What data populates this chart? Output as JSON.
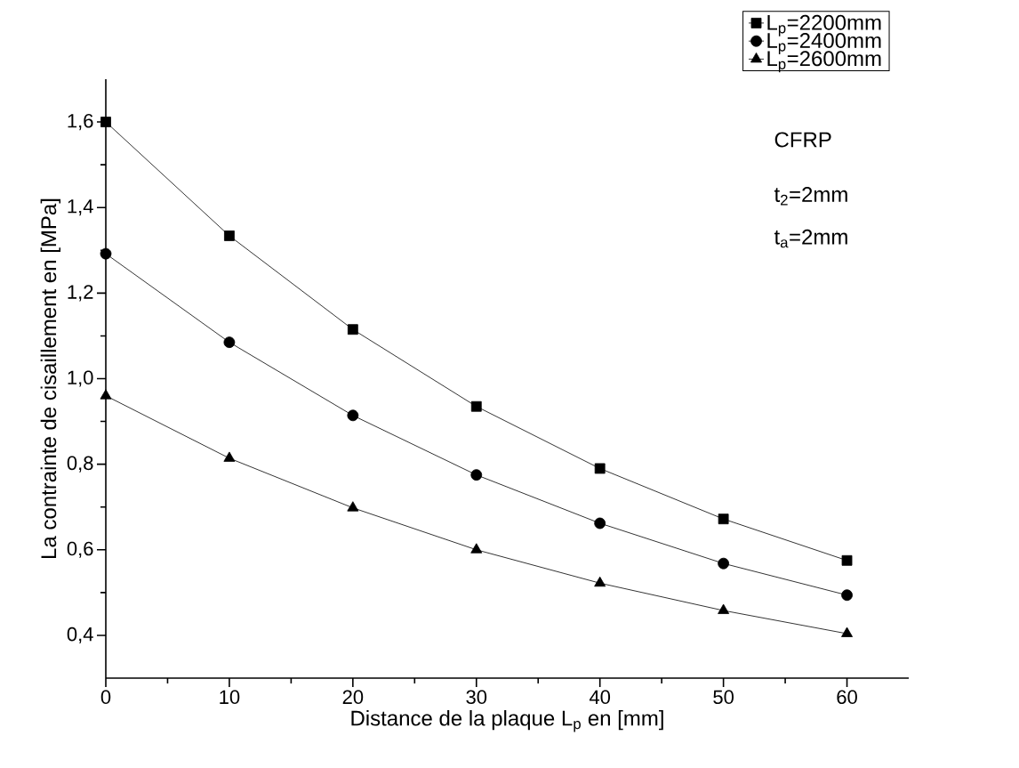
{
  "chart_data": {
    "type": "line",
    "xlabel": "Distance de la plaque L$_{p}$ en [mm]",
    "ylabel": "La contrainte de cisaillement en  [MPa]",
    "x": [
      0,
      10,
      20,
      30,
      40,
      50,
      60
    ],
    "series": [
      {
        "name": "L$_{p}$=2200mm",
        "color": "#000000",
        "marker": "square",
        "values": [
          1.6,
          1.334,
          1.115,
          0.935,
          0.79,
          0.672,
          0.575
        ]
      },
      {
        "name": "L$_{p}$=2400mm",
        "color": "#000000",
        "marker": "circle",
        "values": [
          1.292,
          1.085,
          0.914,
          0.775,
          0.662,
          0.568,
          0.494
        ]
      },
      {
        "name": "L$_{p}$=2600mm",
        "color": "#000000",
        "marker": "triangle",
        "values": [
          0.96,
          0.814,
          0.698,
          0.6,
          0.522,
          0.458,
          0.404
        ]
      }
    ],
    "xlim": [
      0,
      65
    ],
    "ylim": [
      0.3,
      1.7
    ],
    "xticks": [
      0,
      10,
      20,
      30,
      40,
      50,
      60
    ],
    "yticks": [
      {
        "value": 0.4,
        "label": "0,4"
      },
      {
        "value": 0.6,
        "label": "0,6"
      },
      {
        "value": 0.8,
        "label": "0,8"
      },
      {
        "value": 1.0,
        "label": "1,0"
      },
      {
        "value": 1.2,
        "label": "1,2"
      },
      {
        "value": 1.4,
        "label": "1,4"
      },
      {
        "value": 1.6,
        "label": "1,6"
      }
    ],
    "annotations": [
      "CFRP",
      "t$_{2}$=2mm",
      "t$_{a}$=2mm"
    ],
    "legend": "top right",
    "grid": false,
    "line_style": "solid"
  }
}
